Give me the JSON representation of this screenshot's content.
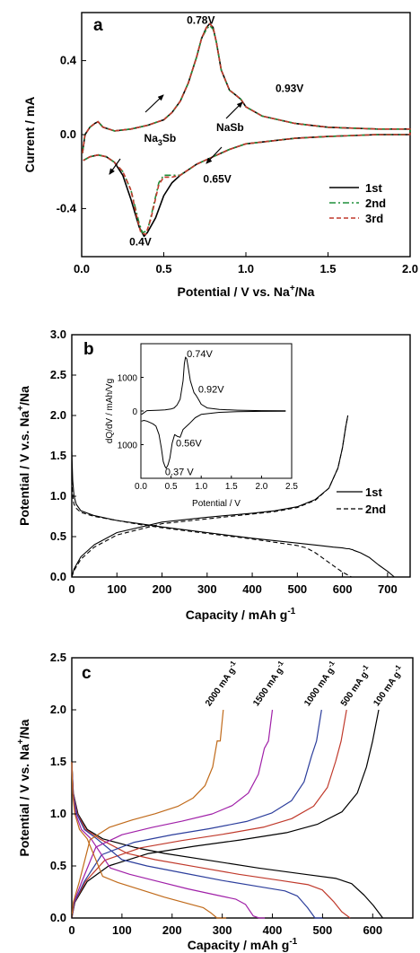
{
  "chart_data": [
    {
      "type": "line",
      "panel": "a",
      "xlabel": "Potential / V  vs. Na",
      "xlabel_sup": "+",
      "xlabel_tail": "/Na",
      "ylabel": "Current / mA",
      "xlim": [
        0.0,
        2.0
      ],
      "ylim": [
        -0.66,
        0.66
      ],
      "xticks": [
        "0.0",
        "0.5",
        "1.0",
        "1.5",
        "2.0"
      ],
      "yticks": [
        "-0.4",
        "0.0",
        "0.4"
      ],
      "ytick_values": [
        -0.4,
        0.0,
        0.4
      ],
      "xtick_values": [
        0.0,
        0.5,
        1.0,
        1.5,
        2.0
      ],
      "legend_position": "lower-right",
      "series": [
        {
          "name": "1st",
          "color": "#000000",
          "dash": "solid",
          "x": [
            0.005,
            0.02,
            0.05,
            0.08,
            0.1,
            0.13,
            0.2,
            0.3,
            0.4,
            0.5,
            0.55,
            0.6,
            0.65,
            0.7,
            0.73,
            0.76,
            0.78,
            0.8,
            0.82,
            0.85,
            0.9,
            0.93,
            0.97,
            1.0,
            1.1,
            1.3,
            1.5,
            1.8,
            2.0,
            2.0,
            1.8,
            1.5,
            1.3,
            1.0,
            0.9,
            0.85,
            0.8,
            0.75,
            0.7,
            0.65,
            0.6,
            0.55,
            0.5,
            0.45,
            0.4,
            0.38,
            0.35,
            0.3,
            0.25,
            0.2,
            0.15,
            0.1,
            0.05,
            0.01
          ],
          "y": [
            -0.1,
            0.0,
            0.04,
            0.06,
            0.07,
            0.04,
            0.02,
            0.03,
            0.05,
            0.08,
            0.12,
            0.18,
            0.28,
            0.42,
            0.52,
            0.58,
            0.6,
            0.58,
            0.5,
            0.35,
            0.24,
            0.22,
            0.19,
            0.15,
            0.1,
            0.06,
            0.04,
            0.03,
            0.03,
            0.0,
            0.0,
            -0.01,
            -0.02,
            -0.05,
            -0.08,
            -0.1,
            -0.12,
            -0.14,
            -0.16,
            -0.19,
            -0.22,
            -0.26,
            -0.33,
            -0.45,
            -0.53,
            -0.55,
            -0.5,
            -0.35,
            -0.22,
            -0.15,
            -0.12,
            -0.11,
            -0.12,
            -0.14
          ]
        },
        {
          "name": "2nd",
          "color": "#1f8f3a",
          "dash": "dashdot",
          "x": [
            0.005,
            0.02,
            0.05,
            0.08,
            0.1,
            0.13,
            0.2,
            0.3,
            0.4,
            0.5,
            0.55,
            0.6,
            0.65,
            0.7,
            0.73,
            0.76,
            0.78,
            0.8,
            0.82,
            0.85,
            0.9,
            0.93,
            0.97,
            1.0,
            1.1,
            1.3,
            1.5,
            1.8,
            2.0,
            2.0,
            1.8,
            1.5,
            1.3,
            1.0,
            0.9,
            0.85,
            0.8,
            0.75,
            0.7,
            0.65,
            0.6,
            0.55,
            0.5,
            0.47,
            0.42,
            0.4,
            0.37,
            0.35,
            0.3,
            0.25,
            0.2,
            0.15,
            0.1,
            0.05,
            0.01
          ],
          "y": [
            -0.1,
            0.0,
            0.04,
            0.06,
            0.07,
            0.04,
            0.02,
            0.03,
            0.05,
            0.08,
            0.12,
            0.18,
            0.28,
            0.42,
            0.52,
            0.57,
            0.59,
            0.57,
            0.5,
            0.35,
            0.24,
            0.22,
            0.19,
            0.15,
            0.1,
            0.06,
            0.04,
            0.03,
            0.03,
            0.0,
            0.0,
            -0.01,
            -0.02,
            -0.05,
            -0.08,
            -0.1,
            -0.12,
            -0.14,
            -0.16,
            -0.19,
            -0.22,
            -0.22,
            -0.22,
            -0.26,
            -0.45,
            -0.52,
            -0.53,
            -0.48,
            -0.3,
            -0.2,
            -0.15,
            -0.12,
            -0.11,
            -0.12,
            -0.14
          ]
        },
        {
          "name": "3rd",
          "color": "#c0392b",
          "dash": "dashed",
          "x": [
            0.005,
            0.02,
            0.05,
            0.08,
            0.1,
            0.13,
            0.2,
            0.3,
            0.4,
            0.5,
            0.55,
            0.6,
            0.65,
            0.7,
            0.73,
            0.76,
            0.78,
            0.8,
            0.82,
            0.85,
            0.9,
            0.93,
            0.97,
            1.0,
            1.1,
            1.3,
            1.5,
            1.8,
            2.0,
            2.0,
            1.8,
            1.5,
            1.3,
            1.0,
            0.9,
            0.85,
            0.8,
            0.75,
            0.7,
            0.65,
            0.6,
            0.55,
            0.5,
            0.47,
            0.42,
            0.39,
            0.36,
            0.34,
            0.3,
            0.25,
            0.2,
            0.15,
            0.1,
            0.05,
            0.01
          ],
          "y": [
            -0.1,
            0.0,
            0.04,
            0.06,
            0.07,
            0.04,
            0.02,
            0.03,
            0.05,
            0.08,
            0.12,
            0.18,
            0.28,
            0.42,
            0.52,
            0.58,
            0.6,
            0.58,
            0.5,
            0.35,
            0.24,
            0.22,
            0.19,
            0.15,
            0.1,
            0.06,
            0.04,
            0.03,
            0.03,
            0.0,
            0.0,
            -0.01,
            -0.02,
            -0.05,
            -0.08,
            -0.1,
            -0.12,
            -0.14,
            -0.16,
            -0.19,
            -0.22,
            -0.23,
            -0.23,
            -0.27,
            -0.46,
            -0.54,
            -0.53,
            -0.46,
            -0.3,
            -0.2,
            -0.15,
            -0.12,
            -0.11,
            -0.12,
            -0.14
          ]
        }
      ],
      "annotations": [
        {
          "text": "0.78V",
          "x": 0.64,
          "y": 0.6
        },
        {
          "text": "0.93V",
          "x": 1.18,
          "y": 0.23
        },
        {
          "text": "0.65V",
          "x": 0.74,
          "y": -0.26
        },
        {
          "text": "0.4V",
          "x": 0.29,
          "y": -0.6
        },
        {
          "text": "Na",
          "sub": "3",
          "tail": "Sb",
          "x": 0.38,
          "y": -0.04
        },
        {
          "text": "NaSb",
          "x": 0.82,
          "y": 0.02
        }
      ]
    },
    {
      "type": "line",
      "panel": "b",
      "xlabel": "Capacity / mAh g",
      "xlabel_sup": "-1",
      "ylabel": "Potential / V v.s. Na",
      "ylabel_sup": "+",
      "ylabel_tail": "/Na",
      "xlim": [
        0,
        750
      ],
      "ylim": [
        0.0,
        3.0
      ],
      "xticks": [
        "0",
        "100",
        "200",
        "300",
        "400",
        "500",
        "600",
        "700"
      ],
      "xtick_values": [
        0,
        100,
        200,
        300,
        400,
        500,
        600,
        700
      ],
      "yticks": [
        "0.0",
        "0.5",
        "1.0",
        "1.5",
        "2.0",
        "2.5",
        "3.0"
      ],
      "ytick_values": [
        0.0,
        0.5,
        1.0,
        1.5,
        2.0,
        2.5,
        3.0
      ],
      "legend_position": "middle-right",
      "series": [
        {
          "name": "1st",
          "dash": "solid",
          "color": "#000000",
          "branches": [
            {
              "x": [
                0,
                2,
                5,
                10,
                20,
                50,
                100,
                150,
                200,
                300,
                400,
                500,
                550,
                580,
                600,
                610,
                615,
                620,
                622,
                625,
                630,
                640,
                660,
                680,
                700,
                715
              ],
              "y": [
                1.55,
                1.2,
                1.0,
                0.9,
                0.82,
                0.76,
                0.7,
                0.66,
                0.62,
                0.55,
                0.48,
                0.42,
                0.39,
                0.37,
                0.36,
                0.35,
                0.35,
                0.34,
                0.34,
                0.33,
                0.32,
                0.3,
                0.24,
                0.15,
                0.07,
                0.0
              ]
            },
            {
              "x": [
                0,
                5,
                20,
                50,
                100,
                200,
                300,
                400,
                450,
                500,
                540,
                570,
                590,
                600,
                607,
                612
              ],
              "y": [
                0.0,
                0.1,
                0.25,
                0.4,
                0.55,
                0.68,
                0.74,
                0.79,
                0.82,
                0.87,
                0.96,
                1.1,
                1.35,
                1.6,
                1.85,
                2.0
              ]
            }
          ]
        },
        {
          "name": "2nd",
          "dash": "dashed",
          "color": "#000000",
          "branches": [
            {
              "x": [
                0,
                2,
                5,
                10,
                20,
                50,
                100,
                150,
                200,
                300,
                400,
                450,
                500,
                520,
                540,
                560,
                580,
                600,
                620
              ],
              "y": [
                1.2,
                1.0,
                0.9,
                0.85,
                0.8,
                0.75,
                0.7,
                0.65,
                0.61,
                0.54,
                0.47,
                0.43,
                0.39,
                0.36,
                0.3,
                0.22,
                0.14,
                0.06,
                0.0
              ]
            },
            {
              "x": [
                0,
                5,
                20,
                50,
                100,
                200,
                300,
                400,
                450,
                500,
                540,
                570,
                590,
                600,
                607,
                612
              ],
              "y": [
                0.0,
                0.08,
                0.22,
                0.37,
                0.52,
                0.66,
                0.72,
                0.78,
                0.81,
                0.86,
                0.95,
                1.1,
                1.35,
                1.6,
                1.85,
                2.0
              ]
            }
          ]
        }
      ],
      "inset": {
        "xlabel": "Potential / V",
        "ylabel": "dQ/dV / mAh/Vg",
        "xlim": [
          0.0,
          2.5
        ],
        "ylim": [
          -2000,
          2000
        ],
        "xticks": [
          "0.0",
          "0.5",
          "1.0",
          "1.5",
          "2.0",
          "2.5"
        ],
        "xtick_values": [
          0.0,
          0.5,
          1.0,
          1.5,
          2.0,
          2.5
        ],
        "yticks": [
          "1000",
          "0",
          "1000"
        ],
        "ytick_values": [
          1000,
          0,
          -1000
        ],
        "series": [
          {
            "x": [
              0.01,
              0.1,
              0.2,
              0.3,
              0.4,
              0.5,
              0.55,
              0.6,
              0.65,
              0.7,
              0.72,
              0.74,
              0.76,
              0.78,
              0.82,
              0.88,
              0.92,
              0.96,
              1.0,
              1.1,
              1.3,
              1.6,
              2.0,
              2.4
            ],
            "y": [
              -100,
              10,
              15,
              25,
              35,
              60,
              90,
              180,
              350,
              900,
              1400,
              1600,
              1550,
              1350,
              900,
              550,
              450,
              330,
              200,
              90,
              45,
              25,
              12,
              8
            ]
          },
          {
            "x": [
              2.4,
              2.0,
              1.6,
              1.3,
              1.0,
              0.9,
              0.8,
              0.7,
              0.65,
              0.6,
              0.56,
              0.52,
              0.48,
              0.45,
              0.42,
              0.4,
              0.37,
              0.34,
              0.3,
              0.25,
              0.2,
              0.15,
              0.1,
              0.05,
              0.01
            ],
            "y": [
              -5,
              -10,
              -20,
              -40,
              -100,
              -200,
              -380,
              -550,
              -780,
              -750,
              -700,
              -950,
              -1400,
              -1600,
              -1700,
              -1650,
              -1500,
              -1100,
              -700,
              -450,
              -380,
              -340,
              -300,
              -280,
              -300
            ]
          }
        ],
        "annotations": [
          {
            "text": "0.74V",
            "x": 0.76,
            "y": 1600
          },
          {
            "text": "0.92V",
            "x": 0.95,
            "y": 550
          },
          {
            "text": "0.56V",
            "x": 0.58,
            "y": -1050
          },
          {
            "text": "0.37 V",
            "x": 0.4,
            "y": -1900
          }
        ]
      }
    },
    {
      "type": "line",
      "panel": "c",
      "xlabel": "Capacity / mAh g",
      "xlabel_sup": "-1",
      "ylabel": "Potential  / V vs. Na",
      "ylabel_sup": "+",
      "ylabel_tail": "/Na",
      "xlim": [
        0,
        680
      ],
      "ylim": [
        0.0,
        2.5
      ],
      "xticks": [
        "0",
        "100",
        "200",
        "300",
        "400",
        "500",
        "600"
      ],
      "xtick_values": [
        0,
        100,
        200,
        300,
        400,
        500,
        600
      ],
      "yticks": [
        "0.0",
        "0.5",
        "1.0",
        "1.5",
        "2.0",
        "2.5"
      ],
      "ytick_values": [
        0.0,
        0.5,
        1.0,
        1.5,
        2.0,
        2.5
      ],
      "series": [
        {
          "name": "100 mA g",
          "sup": "-1",
          "color": "#000000",
          "cap": 620,
          "charge_cap": 612,
          "label_x": 610,
          "label_y": 2.03
        },
        {
          "name": "500 mA g",
          "sup": "-1",
          "color": "#c0392b",
          "cap": 555,
          "charge_cap": 548,
          "label_x": 545,
          "label_y": 2.03
        },
        {
          "name": "1000 mA g",
          "sup": "-1",
          "color": "#2c3e9c",
          "cap": 500,
          "charge_cap": 498,
          "label_x": 472,
          "label_y": 2.03
        },
        {
          "name": "1500 mA g",
          "sup": "-1",
          "color": "#a020a8",
          "cap": 385,
          "charge_cap": 400,
          "label_x": 370,
          "label_y": 2.03
        },
        {
          "name": "2000 mA g",
          "sup": "-1",
          "color": "#c06a1a",
          "cap": 308,
          "charge_cap": 302,
          "label_x": 275,
          "label_y": 2.03
        }
      ]
    }
  ]
}
